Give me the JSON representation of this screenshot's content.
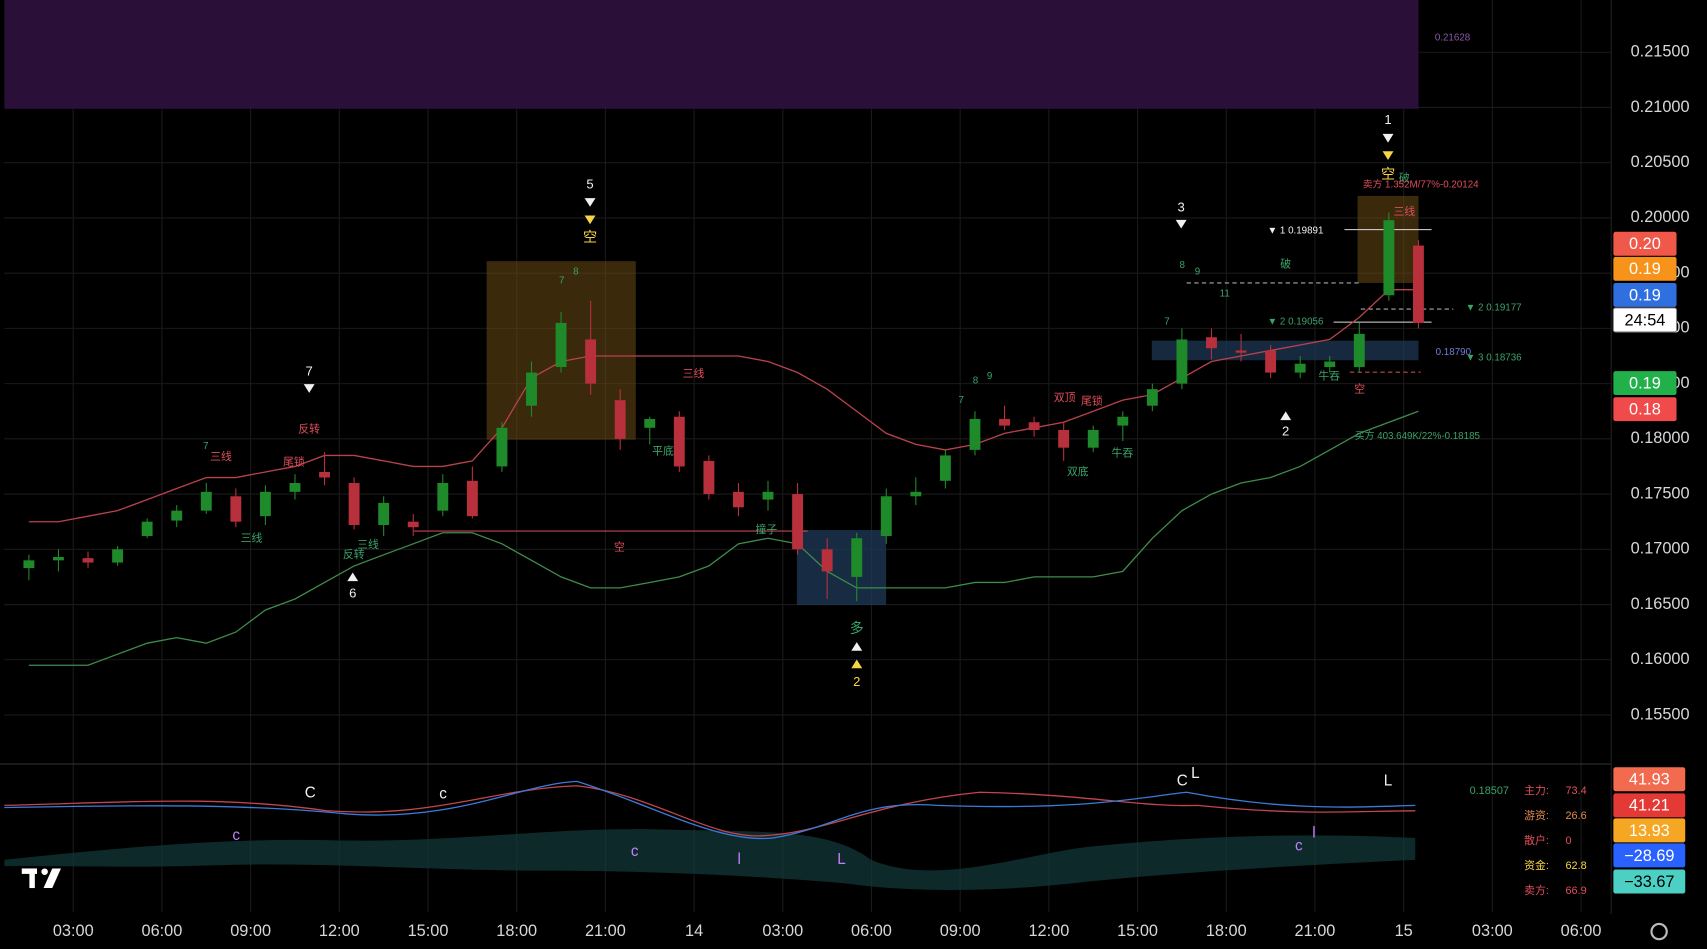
{
  "chart_data": {
    "type": "candlestick",
    "x": [
      1.5,
      2.5,
      3.5,
      4.5,
      5.5,
      6.5,
      7.5,
      8.5,
      9.5,
      10.5,
      11.5,
      12.5,
      13.5,
      14.5,
      15.5,
      16.5,
      17.5,
      18.5,
      19.5,
      20.5,
      21.5,
      22.5,
      23.5,
      24.5,
      25.5,
      26.5,
      27.5,
      28.5,
      29.5,
      30.5,
      31.5,
      32.5,
      33.5,
      34.5,
      35.5,
      36.5,
      37.5,
      38.5,
      39.5,
      40.5,
      41.5,
      42.5,
      43.5,
      44.5,
      45.5,
      46.5,
      47.5,
      48.5
    ],
    "open": [
      0.1683,
      0.169,
      0.1692,
      0.1688,
      0.1712,
      0.1726,
      0.1735,
      0.1748,
      0.173,
      0.1752,
      0.177,
      0.176,
      0.1722,
      0.1725,
      0.1735,
      0.1762,
      0.1775,
      0.183,
      0.1865,
      0.189,
      0.1835,
      0.181,
      0.182,
      0.178,
      0.1752,
      0.1745,
      0.175,
      0.17,
      0.1675,
      0.1712,
      0.1748,
      0.1762,
      0.179,
      0.1818,
      0.1815,
      0.1808,
      0.1792,
      0.1812,
      0.183,
      0.185,
      0.1892,
      0.188,
      0.188,
      0.186,
      0.1865,
      0.1865,
      0.193,
      0.1975
    ],
    "high": [
      0.1695,
      0.17,
      0.1698,
      0.1703,
      0.1728,
      0.174,
      0.176,
      0.1755,
      0.1758,
      0.1768,
      0.1788,
      0.1765,
      0.1748,
      0.1732,
      0.1768,
      0.1775,
      0.1815,
      0.187,
      0.1915,
      0.1925,
      0.1845,
      0.182,
      0.1825,
      0.1785,
      0.176,
      0.1762,
      0.176,
      0.171,
      0.1715,
      0.1755,
      0.1765,
      0.179,
      0.1825,
      0.183,
      0.182,
      0.1815,
      0.1812,
      0.1825,
      0.185,
      0.19,
      0.19,
      0.1895,
      0.1885,
      0.1875,
      0.1875,
      0.1905,
      0.2005,
      0.198
    ],
    "low": [
      0.1672,
      0.168,
      0.1683,
      0.1685,
      0.171,
      0.172,
      0.1732,
      0.172,
      0.1722,
      0.1745,
      0.1758,
      0.1718,
      0.1712,
      0.1712,
      0.173,
      0.1728,
      0.177,
      0.182,
      0.186,
      0.184,
      0.179,
      0.1795,
      0.177,
      0.1745,
      0.173,
      0.1735,
      0.1695,
      0.1655,
      0.1653,
      0.1705,
      0.174,
      0.1755,
      0.1785,
      0.1808,
      0.1802,
      0.178,
      0.1788,
      0.1798,
      0.1825,
      0.1845,
      0.1872,
      0.187,
      0.1855,
      0.1855,
      0.186,
      0.186,
      0.1925,
      0.19
    ],
    "close": [
      0.169,
      0.1693,
      0.1688,
      0.17,
      0.1725,
      0.1735,
      0.1752,
      0.1725,
      0.1752,
      0.176,
      0.1765,
      0.1722,
      0.1742,
      0.172,
      0.176,
      0.173,
      0.181,
      0.186,
      0.1905,
      0.185,
      0.18,
      0.1818,
      0.1775,
      0.175,
      0.1738,
      0.1752,
      0.17,
      0.168,
      0.171,
      0.1748,
      0.1752,
      0.1785,
      0.1818,
      0.1812,
      0.1808,
      0.1792,
      0.1808,
      0.182,
      0.1845,
      0.189,
      0.1882,
      0.1878,
      0.186,
      0.1868,
      0.187,
      0.1895,
      0.1998,
      0.1905
    ],
    "up_color": "#1f8a2a",
    "down_color": "#b7303c",
    "bands": [
      {
        "color": "#b8434d",
        "values": [
          0.1725,
          0.1725,
          0.173,
          0.1735,
          0.1745,
          0.1755,
          0.1765,
          0.1765,
          0.177,
          0.1775,
          0.1785,
          0.1785,
          0.178,
          0.1775,
          0.1775,
          0.178,
          0.181,
          0.1855,
          0.187,
          0.1875,
          0.1875,
          0.1875,
          0.1875,
          0.1875,
          0.1875,
          0.187,
          0.186,
          0.1845,
          0.1825,
          0.1805,
          0.1795,
          0.179,
          0.1795,
          0.1805,
          0.181,
          0.1815,
          0.1825,
          0.1835,
          0.184,
          0.1855,
          0.187,
          0.1875,
          0.188,
          0.1885,
          0.189,
          0.191,
          0.1935,
          0.1935
        ]
      },
      {
        "color": "#3e8c4a",
        "values": [
          0.1595,
          0.1595,
          0.1595,
          0.1605,
          0.1615,
          0.162,
          0.1615,
          0.1625,
          0.1645,
          0.1655,
          0.167,
          0.1685,
          0.1695,
          0.1705,
          0.1715,
          0.1715,
          0.1705,
          0.169,
          0.1675,
          0.1665,
          0.1665,
          0.167,
          0.1675,
          0.1685,
          0.1705,
          0.171,
          0.1705,
          0.168,
          0.1665,
          0.1665,
          0.1665,
          0.1665,
          0.167,
          0.167,
          0.1675,
          0.1675,
          0.1675,
          0.168,
          0.171,
          0.1735,
          0.175,
          0.176,
          0.1765,
          0.1775,
          0.179,
          0.1805,
          0.1815,
          0.1825
        ]
      }
    ],
    "xlim": [
      0.67,
      55.02
    ],
    "ylim": [
      0.15076,
      0.21973
    ],
    "yticks": [
      {
        "value": 0.155,
        "label": "0.15500"
      },
      {
        "value": 0.16,
        "label": "0.16000"
      },
      {
        "value": 0.165,
        "label": "0.16500"
      },
      {
        "value": 0.17,
        "label": "0.17000"
      },
      {
        "value": 0.175,
        "label": "0.17500"
      },
      {
        "value": 0.18,
        "label": "0.18000"
      },
      {
        "value": 0.185,
        "label": "0.18500"
      },
      {
        "value": 0.19,
        "label": "0.19000"
      },
      {
        "value": 0.195,
        "label": "0.19500"
      },
      {
        "value": 0.2,
        "label": "0.20000"
      },
      {
        "value": 0.205,
        "label": "0.20500"
      },
      {
        "value": 0.21,
        "label": "0.21000"
      },
      {
        "value": 0.215,
        "label": "0.21500"
      }
    ],
    "xticks": [
      {
        "value": 3,
        "label": "03:00"
      },
      {
        "value": 6,
        "label": "06:00"
      },
      {
        "value": 9,
        "label": "09:00"
      },
      {
        "value": 12,
        "label": "12:00"
      },
      {
        "value": 15,
        "label": "15:00"
      },
      {
        "value": 18,
        "label": "18:00"
      },
      {
        "value": 21,
        "label": "21:00"
      },
      {
        "value": 24,
        "label": "14"
      },
      {
        "value": 27,
        "label": "03:00"
      },
      {
        "value": 30,
        "label": "06:00"
      },
      {
        "value": 33,
        "label": "09:00"
      },
      {
        "value": 36,
        "label": "12:00"
      },
      {
        "value": 39,
        "label": "15:00"
      },
      {
        "value": 42,
        "label": "18:00"
      },
      {
        "value": 45,
        "label": "21:00"
      },
      {
        "value": 48,
        "label": "15"
      },
      {
        "value": 51,
        "label": "03:00"
      },
      {
        "value": 54,
        "label": "06:00"
      }
    ],
    "grid": true,
    "zone_label": "0.21628",
    "price_badges": [
      {
        "label": "0.20",
        "color": "#f0584a"
      },
      {
        "label": "0.19",
        "color": "#f7931a"
      },
      {
        "label": "0.19",
        "color": "#2f6fe0"
      },
      {
        "label": "24:54",
        "color": "#ffffff"
      },
      {
        "label": "0.19",
        "color": "#22b04a"
      },
      {
        "label": "0.18",
        "color": "#f04a4a"
      }
    ],
    "indicator_badges": [
      {
        "label": "41.93",
        "color": "#f26b4f"
      },
      {
        "label": "41.21",
        "color": "#e53935"
      },
      {
        "label": "13.93",
        "color": "#f5a623"
      },
      {
        "label": "−28.69",
        "color": "#2962ff"
      },
      {
        "label": "−33.67",
        "color": "#4dd0c4"
      }
    ],
    "indicator_level": "0.18507",
    "indicator_readout": [
      {
        "name": "主力:",
        "value": 73.4
      },
      {
        "name": "游资:",
        "value": 26.6
      },
      {
        "name": "散户:",
        "value": 0
      },
      {
        "name": "资金:",
        "value": 62.8
      },
      {
        "name": "卖方:",
        "value": 66.9
      }
    ],
    "annotations": [
      "5",
      "空",
      "7",
      "反转",
      "三线",
      "尾锁",
      "三线",
      "三线",
      "反转",
      "6",
      "平底",
      "三线",
      "撞子",
      "空",
      "多",
      "2",
      "3",
      "破",
      "双顶",
      "尾锁",
      "双底",
      "牛吞",
      "2",
      "1",
      "空",
      "破",
      "卖方 1.352M/77%-0.20124",
      "三线",
      "▼ 1  0.19891",
      "▼ 2  0.19056",
      "▼ 2  0.19177",
      "0.18790",
      "▼ 3  0.18736",
      "牛吞",
      "空",
      "买方 403.649K/22%-0.18185",
      "8",
      "9",
      "11",
      "7",
      "8",
      "7",
      "7",
      "9",
      "8",
      "7"
    ],
    "indicator_annotations": [
      "C",
      "c",
      "C",
      "L",
      "L",
      "c",
      "c",
      "l",
      "L",
      "c",
      "l"
    ]
  }
}
